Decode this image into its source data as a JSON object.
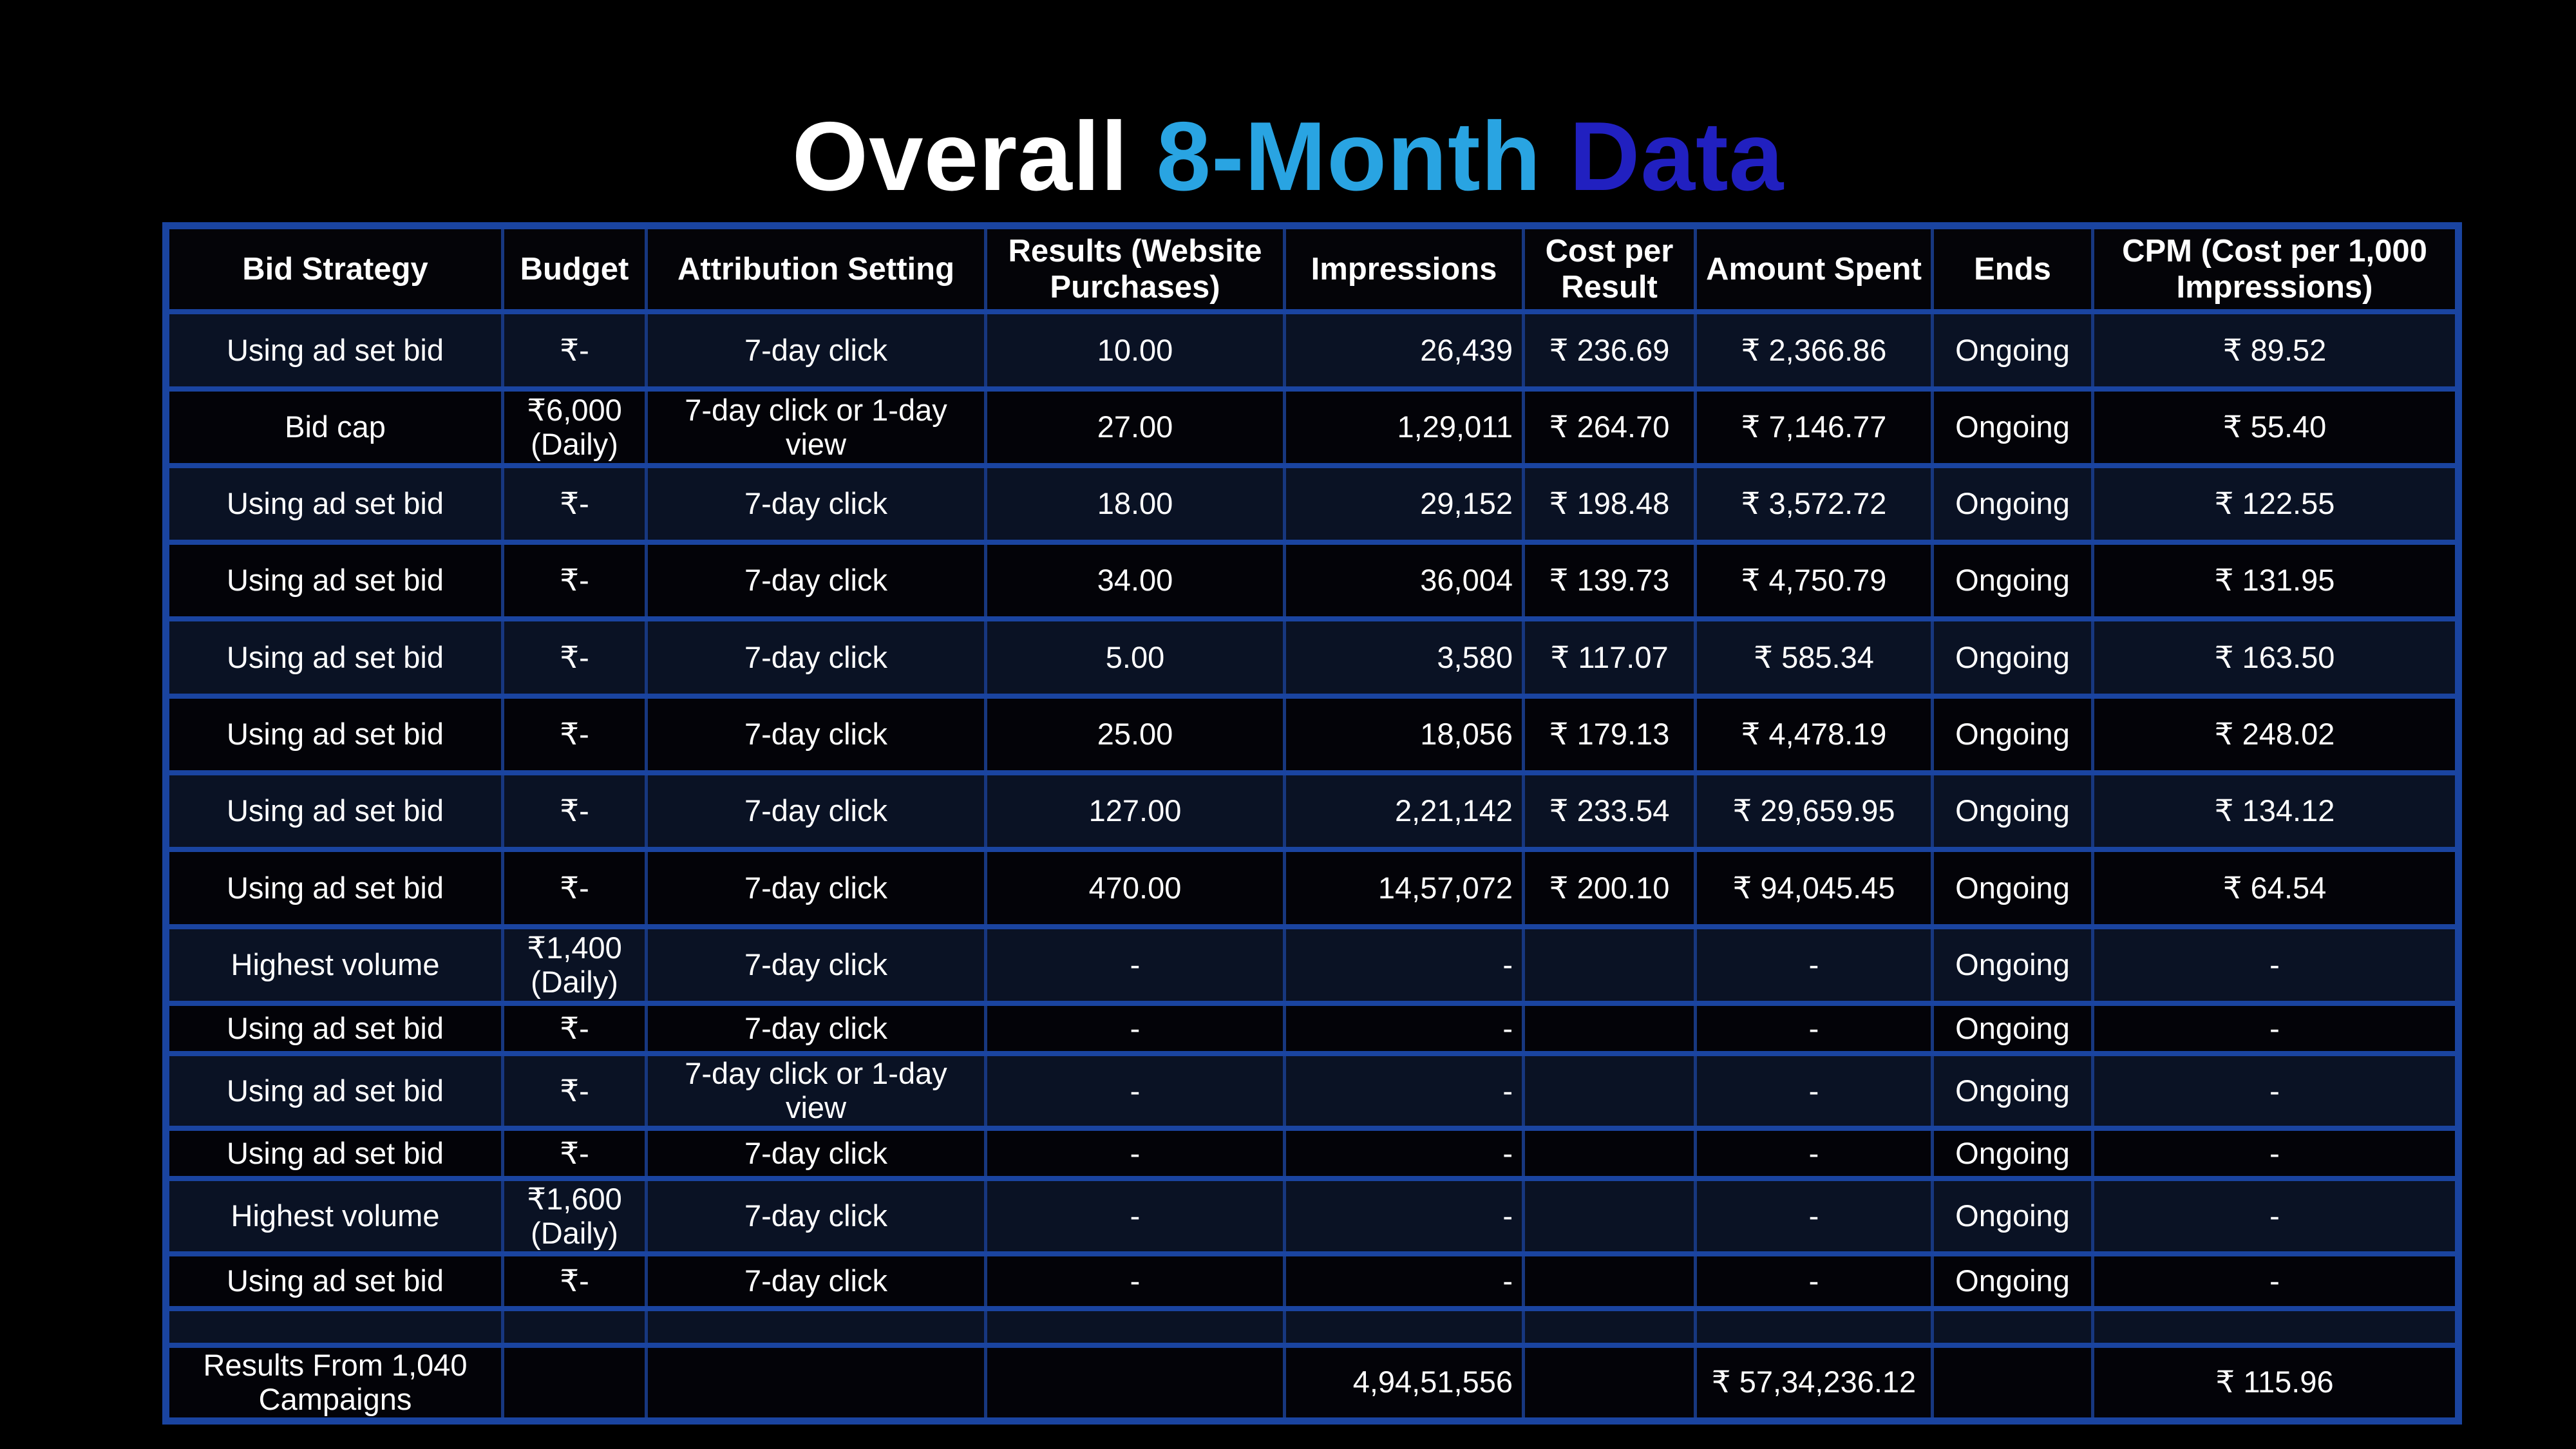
{
  "title": {
    "part1": "Overall ",
    "part2": "8-Month ",
    "part3": "Data"
  },
  "colors": {
    "title_part1": "#ffffff",
    "title_part2": "#29a4e2",
    "title_part3": "#2120c0",
    "border_horizontal": "#1a44a0",
    "border_vertical": "#17377f",
    "row_navy": "#0a1224",
    "row_black": "#030308",
    "background": "#000000"
  },
  "chart_data": {
    "type": "table",
    "title": "Overall 8-Month Data",
    "columns": [
      "Bid Strategy",
      "Budget",
      "Attribution Setting",
      "Results (Website Purchases)",
      "Impressions",
      "Cost per Result",
      "Amount Spent",
      "Ends",
      "CPM (Cost per 1,000 Impressions)"
    ],
    "rows": [
      [
        "Using ad set bid",
        "₹-",
        "7-day click",
        "10.00",
        "26,439",
        "₹ 236.69",
        "₹ 2,366.86",
        "Ongoing",
        "₹ 89.52"
      ],
      [
        "Bid cap",
        "₹6,000 (Daily)",
        "7-day click or 1-day view",
        "27.00",
        "1,29,011",
        "₹ 264.70",
        "₹ 7,146.77",
        "Ongoing",
        "₹ 55.40"
      ],
      [
        "Using ad set bid",
        "₹-",
        "7-day click",
        "18.00",
        "29,152",
        "₹ 198.48",
        "₹ 3,572.72",
        "Ongoing",
        "₹ 122.55"
      ],
      [
        "Using ad set bid",
        "₹-",
        "7-day click",
        "34.00",
        "36,004",
        "₹ 139.73",
        "₹ 4,750.79",
        "Ongoing",
        "₹ 131.95"
      ],
      [
        "Using ad set bid",
        "₹-",
        "7-day click",
        "5.00",
        "3,580",
        "₹ 117.07",
        "₹ 585.34",
        "Ongoing",
        "₹ 163.50"
      ],
      [
        "Using ad set bid",
        "₹-",
        "7-day click",
        "25.00",
        "18,056",
        "₹ 179.13",
        "₹ 4,478.19",
        "Ongoing",
        "₹ 248.02"
      ],
      [
        "Using ad set bid",
        "₹-",
        "7-day click",
        "127.00",
        "2,21,142",
        "₹ 233.54",
        "₹ 29,659.95",
        "Ongoing",
        "₹ 134.12"
      ],
      [
        "Using ad set bid",
        "₹-",
        "7-day click",
        "470.00",
        "14,57,072",
        "₹ 200.10",
        "₹ 94,045.45",
        "Ongoing",
        "₹ 64.54"
      ],
      [
        "Highest volume",
        "₹1,400 (Daily)",
        "7-day click",
        "-",
        "-",
        "",
        "-",
        "Ongoing",
        "-"
      ],
      [
        "Using ad set bid",
        "₹-",
        "7-day click",
        "-",
        "-",
        "",
        "-",
        "Ongoing",
        "-"
      ],
      [
        "Using ad set bid",
        "₹-",
        "7-day click or 1-day view",
        "-",
        "-",
        "",
        "-",
        "Ongoing",
        "-"
      ],
      [
        "Using ad set bid",
        "₹-",
        "7-day click",
        "-",
        "-",
        "",
        "-",
        "Ongoing",
        "-"
      ],
      [
        "Highest volume",
        "₹1,600 (Daily)",
        "7-day click",
        "-",
        "-",
        "",
        "-",
        "Ongoing",
        "-"
      ],
      [
        "Using ad set bid",
        "₹-",
        "7-day click",
        "-",
        "-",
        "",
        "-",
        "Ongoing",
        "-"
      ],
      [
        "",
        "",
        "",
        "",
        "",
        "",
        "",
        "",
        ""
      ],
      [
        "Results From 1,040 Campaigns",
        "",
        "",
        "",
        "4,94,51,556",
        "",
        "₹ 57,34,236.12",
        "",
        "₹ 115.96"
      ]
    ],
    "summary_row_label": "Results From 1,040 Campaigns",
    "totals": {
      "impressions": "4,94,51,556",
      "amount_spent": "₹ 57,34,236.12",
      "cpm": "₹ 115.96"
    }
  }
}
